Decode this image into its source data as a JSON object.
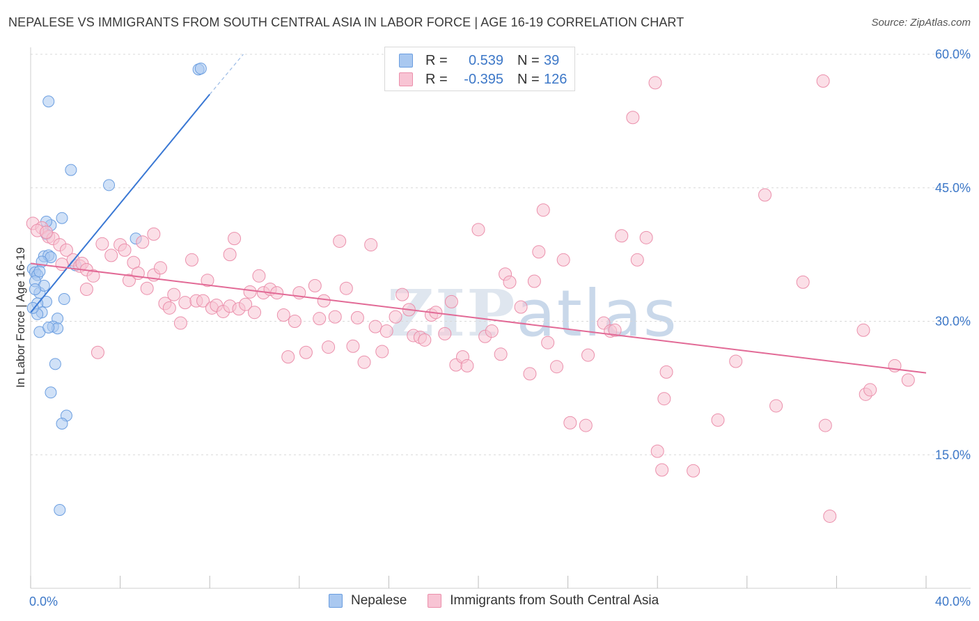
{
  "title": "NEPALESE VS IMMIGRANTS FROM SOUTH CENTRAL ASIA IN LABOR FORCE | AGE 16-19 CORRELATION CHART",
  "source": "Source: ZipAtlas.com",
  "watermark": {
    "zip": "ZIP",
    "atlas": "atlas"
  },
  "legend": {
    "rows": [
      {
        "r_label": "R =",
        "r_value": "0.539",
        "n_label": "N =",
        "n_value": "39",
        "color": "#a9c8f0",
        "border": "#6b9ee0"
      },
      {
        "r_label": "R =",
        "r_value": "-0.395",
        "n_label": "N =",
        "n_value": "126",
        "color": "#f8c4d4",
        "border": "#eb8fab"
      }
    ]
  },
  "bottom_legend": [
    {
      "label": "Nepalese",
      "color": "#a9c8f0",
      "border": "#6b9ee0"
    },
    {
      "label": "Immigrants from South Central Asia",
      "color": "#f8c4d4",
      "border": "#eb8fab"
    }
  ],
  "chart_data": {
    "type": "scatter",
    "title": "NEPALESE VS IMMIGRANTS FROM SOUTH CENTRAL ASIA IN LABOR FORCE | AGE 16-19 CORRELATION CHART",
    "xlabel": "",
    "ylabel": "In Labor Force | Age 16-19",
    "xlim": [
      0,
      40
    ],
    "ylim": [
      0,
      60
    ],
    "x_ticks_labels": [
      "0.0%",
      "40.0%"
    ],
    "y_ticks": [
      15,
      30,
      45,
      60
    ],
    "y_ticks_labels": [
      "15.0%",
      "30.0%",
      "45.0%",
      "60.0%"
    ],
    "grid": "horizontal-dashed",
    "legend_position": "top-center",
    "series": [
      {
        "name": "Nepalese",
        "color": "#a9c8f0",
        "edge": "#6b9ee0",
        "trend": {
          "x1": 0,
          "y1": 31,
          "x2": 8,
          "y2": 55.5,
          "ext_x2": 9.5,
          "ext_y2": 60
        },
        "points": [
          [
            0.1,
            35.9
          ],
          [
            0.2,
            35.5
          ],
          [
            0.3,
            35.2
          ],
          [
            0.2,
            34.5
          ],
          [
            0.4,
            33.2
          ],
          [
            0.6,
            34.0
          ],
          [
            0.7,
            32.2
          ],
          [
            0.3,
            32.0
          ],
          [
            0.5,
            31.0
          ],
          [
            0.3,
            30.8
          ],
          [
            0.6,
            37.3
          ],
          [
            0.8,
            37.4
          ],
          [
            0.9,
            37.2
          ],
          [
            0.5,
            36.7
          ],
          [
            0.7,
            39.8
          ],
          [
            0.9,
            40.8
          ],
          [
            0.7,
            41.2
          ],
          [
            1.4,
            41.6
          ],
          [
            1.5,
            32.5
          ],
          [
            1.2,
            30.3
          ],
          [
            1.0,
            29.4
          ],
          [
            1.2,
            29.2
          ],
          [
            0.4,
            28.8
          ],
          [
            1.1,
            25.2
          ],
          [
            0.9,
            22.0
          ],
          [
            1.6,
            19.4
          ],
          [
            1.4,
            18.5
          ],
          [
            1.3,
            8.8
          ],
          [
            0.8,
            54.7
          ],
          [
            1.8,
            47.0
          ],
          [
            3.5,
            45.3
          ],
          [
            4.7,
            39.3
          ],
          [
            7.5,
            58.3
          ],
          [
            7.6,
            58.4
          ],
          [
            2.0,
            36.3
          ],
          [
            0.4,
            35.6
          ],
          [
            0.2,
            33.6
          ],
          [
            0.8,
            29.3
          ],
          [
            0.1,
            31.5
          ]
        ]
      },
      {
        "name": "Immigrants from South Central Asia",
        "color": "#f8c4d4",
        "edge": "#eb8fab",
        "trend": {
          "x1": 0,
          "y1": 36.5,
          "x2": 40,
          "y2": 24.2
        },
        "points": [
          [
            0.1,
            41.0
          ],
          [
            0.5,
            40.5
          ],
          [
            0.8,
            39.5
          ],
          [
            1.0,
            39.3
          ],
          [
            1.3,
            38.6
          ],
          [
            1.6,
            38.0
          ],
          [
            1.4,
            36.4
          ],
          [
            1.9,
            36.9
          ],
          [
            2.2,
            36.2
          ],
          [
            2.3,
            36.5
          ],
          [
            2.5,
            35.8
          ],
          [
            2.8,
            35.1
          ],
          [
            2.5,
            33.6
          ],
          [
            3.0,
            26.5
          ],
          [
            3.2,
            38.7
          ],
          [
            3.6,
            37.4
          ],
          [
            4.0,
            38.6
          ],
          [
            4.2,
            38.0
          ],
          [
            4.4,
            34.6
          ],
          [
            4.6,
            36.6
          ],
          [
            4.8,
            35.4
          ],
          [
            5.0,
            38.9
          ],
          [
            5.2,
            33.7
          ],
          [
            5.5,
            39.8
          ],
          [
            5.5,
            35.2
          ],
          [
            5.8,
            36.0
          ],
          [
            6.0,
            32.0
          ],
          [
            6.2,
            31.5
          ],
          [
            6.4,
            33.0
          ],
          [
            6.7,
            29.8
          ],
          [
            6.9,
            32.1
          ],
          [
            7.2,
            36.9
          ],
          [
            7.4,
            32.3
          ],
          [
            7.7,
            32.3
          ],
          [
            7.9,
            34.6
          ],
          [
            8.1,
            31.5
          ],
          [
            8.3,
            31.8
          ],
          [
            8.6,
            31.1
          ],
          [
            8.9,
            31.7
          ],
          [
            8.9,
            37.5
          ],
          [
            9.1,
            39.3
          ],
          [
            9.3,
            31.4
          ],
          [
            9.6,
            31.9
          ],
          [
            9.8,
            33.3
          ],
          [
            10.0,
            31.0
          ],
          [
            10.2,
            35.1
          ],
          [
            10.4,
            33.2
          ],
          [
            10.7,
            33.6
          ],
          [
            11.0,
            33.2
          ],
          [
            11.3,
            30.7
          ],
          [
            11.5,
            26.0
          ],
          [
            11.8,
            30.0
          ],
          [
            12.0,
            33.2
          ],
          [
            12.3,
            26.5
          ],
          [
            12.7,
            34.0
          ],
          [
            12.9,
            30.3
          ],
          [
            13.1,
            32.3
          ],
          [
            13.3,
            27.1
          ],
          [
            13.6,
            30.5
          ],
          [
            13.8,
            39.0
          ],
          [
            14.1,
            33.7
          ],
          [
            14.4,
            27.2
          ],
          [
            14.6,
            30.4
          ],
          [
            14.9,
            25.4
          ],
          [
            15.2,
            38.6
          ],
          [
            15.4,
            29.4
          ],
          [
            15.7,
            26.6
          ],
          [
            15.9,
            28.9
          ],
          [
            16.3,
            30.5
          ],
          [
            16.6,
            33.0
          ],
          [
            16.9,
            31.3
          ],
          [
            17.1,
            28.4
          ],
          [
            17.4,
            28.2
          ],
          [
            17.6,
            27.9
          ],
          [
            17.9,
            30.7
          ],
          [
            18.1,
            31.0
          ],
          [
            18.5,
            28.6
          ],
          [
            18.8,
            32.2
          ],
          [
            19.0,
            25.1
          ],
          [
            19.3,
            26.0
          ],
          [
            19.5,
            25.0
          ],
          [
            20.0,
            40.3
          ],
          [
            20.3,
            28.3
          ],
          [
            20.6,
            28.9
          ],
          [
            21.0,
            26.3
          ],
          [
            21.2,
            35.3
          ],
          [
            21.4,
            34.4
          ],
          [
            21.9,
            31.6
          ],
          [
            22.3,
            24.1
          ],
          [
            22.5,
            34.5
          ],
          [
            22.7,
            37.8
          ],
          [
            22.9,
            42.5
          ],
          [
            23.1,
            27.6
          ],
          [
            23.5,
            24.9
          ],
          [
            23.8,
            36.9
          ],
          [
            24.1,
            18.6
          ],
          [
            24.8,
            18.3
          ],
          [
            24.9,
            26.2
          ],
          [
            25.6,
            29.8
          ],
          [
            25.9,
            28.9
          ],
          [
            26.1,
            29.0
          ],
          [
            26.4,
            39.6
          ],
          [
            26.9,
            52.9
          ],
          [
            27.1,
            36.9
          ],
          [
            27.5,
            39.4
          ],
          [
            28.0,
            15.4
          ],
          [
            28.2,
            13.3
          ],
          [
            28.3,
            21.3
          ],
          [
            28.4,
            24.3
          ],
          [
            27.9,
            56.8
          ],
          [
            29.6,
            13.2
          ],
          [
            30.7,
            18.9
          ],
          [
            31.5,
            25.5
          ],
          [
            32.8,
            44.2
          ],
          [
            33.3,
            20.5
          ],
          [
            34.5,
            34.4
          ],
          [
            35.4,
            57.0
          ],
          [
            35.5,
            18.3
          ],
          [
            35.7,
            8.1
          ],
          [
            37.2,
            29.0
          ],
          [
            37.3,
            21.8
          ],
          [
            37.5,
            22.3
          ],
          [
            38.6,
            25.0
          ],
          [
            39.2,
            23.4
          ],
          [
            0.3,
            40.2
          ],
          [
            0.7,
            40.0
          ]
        ]
      }
    ]
  }
}
